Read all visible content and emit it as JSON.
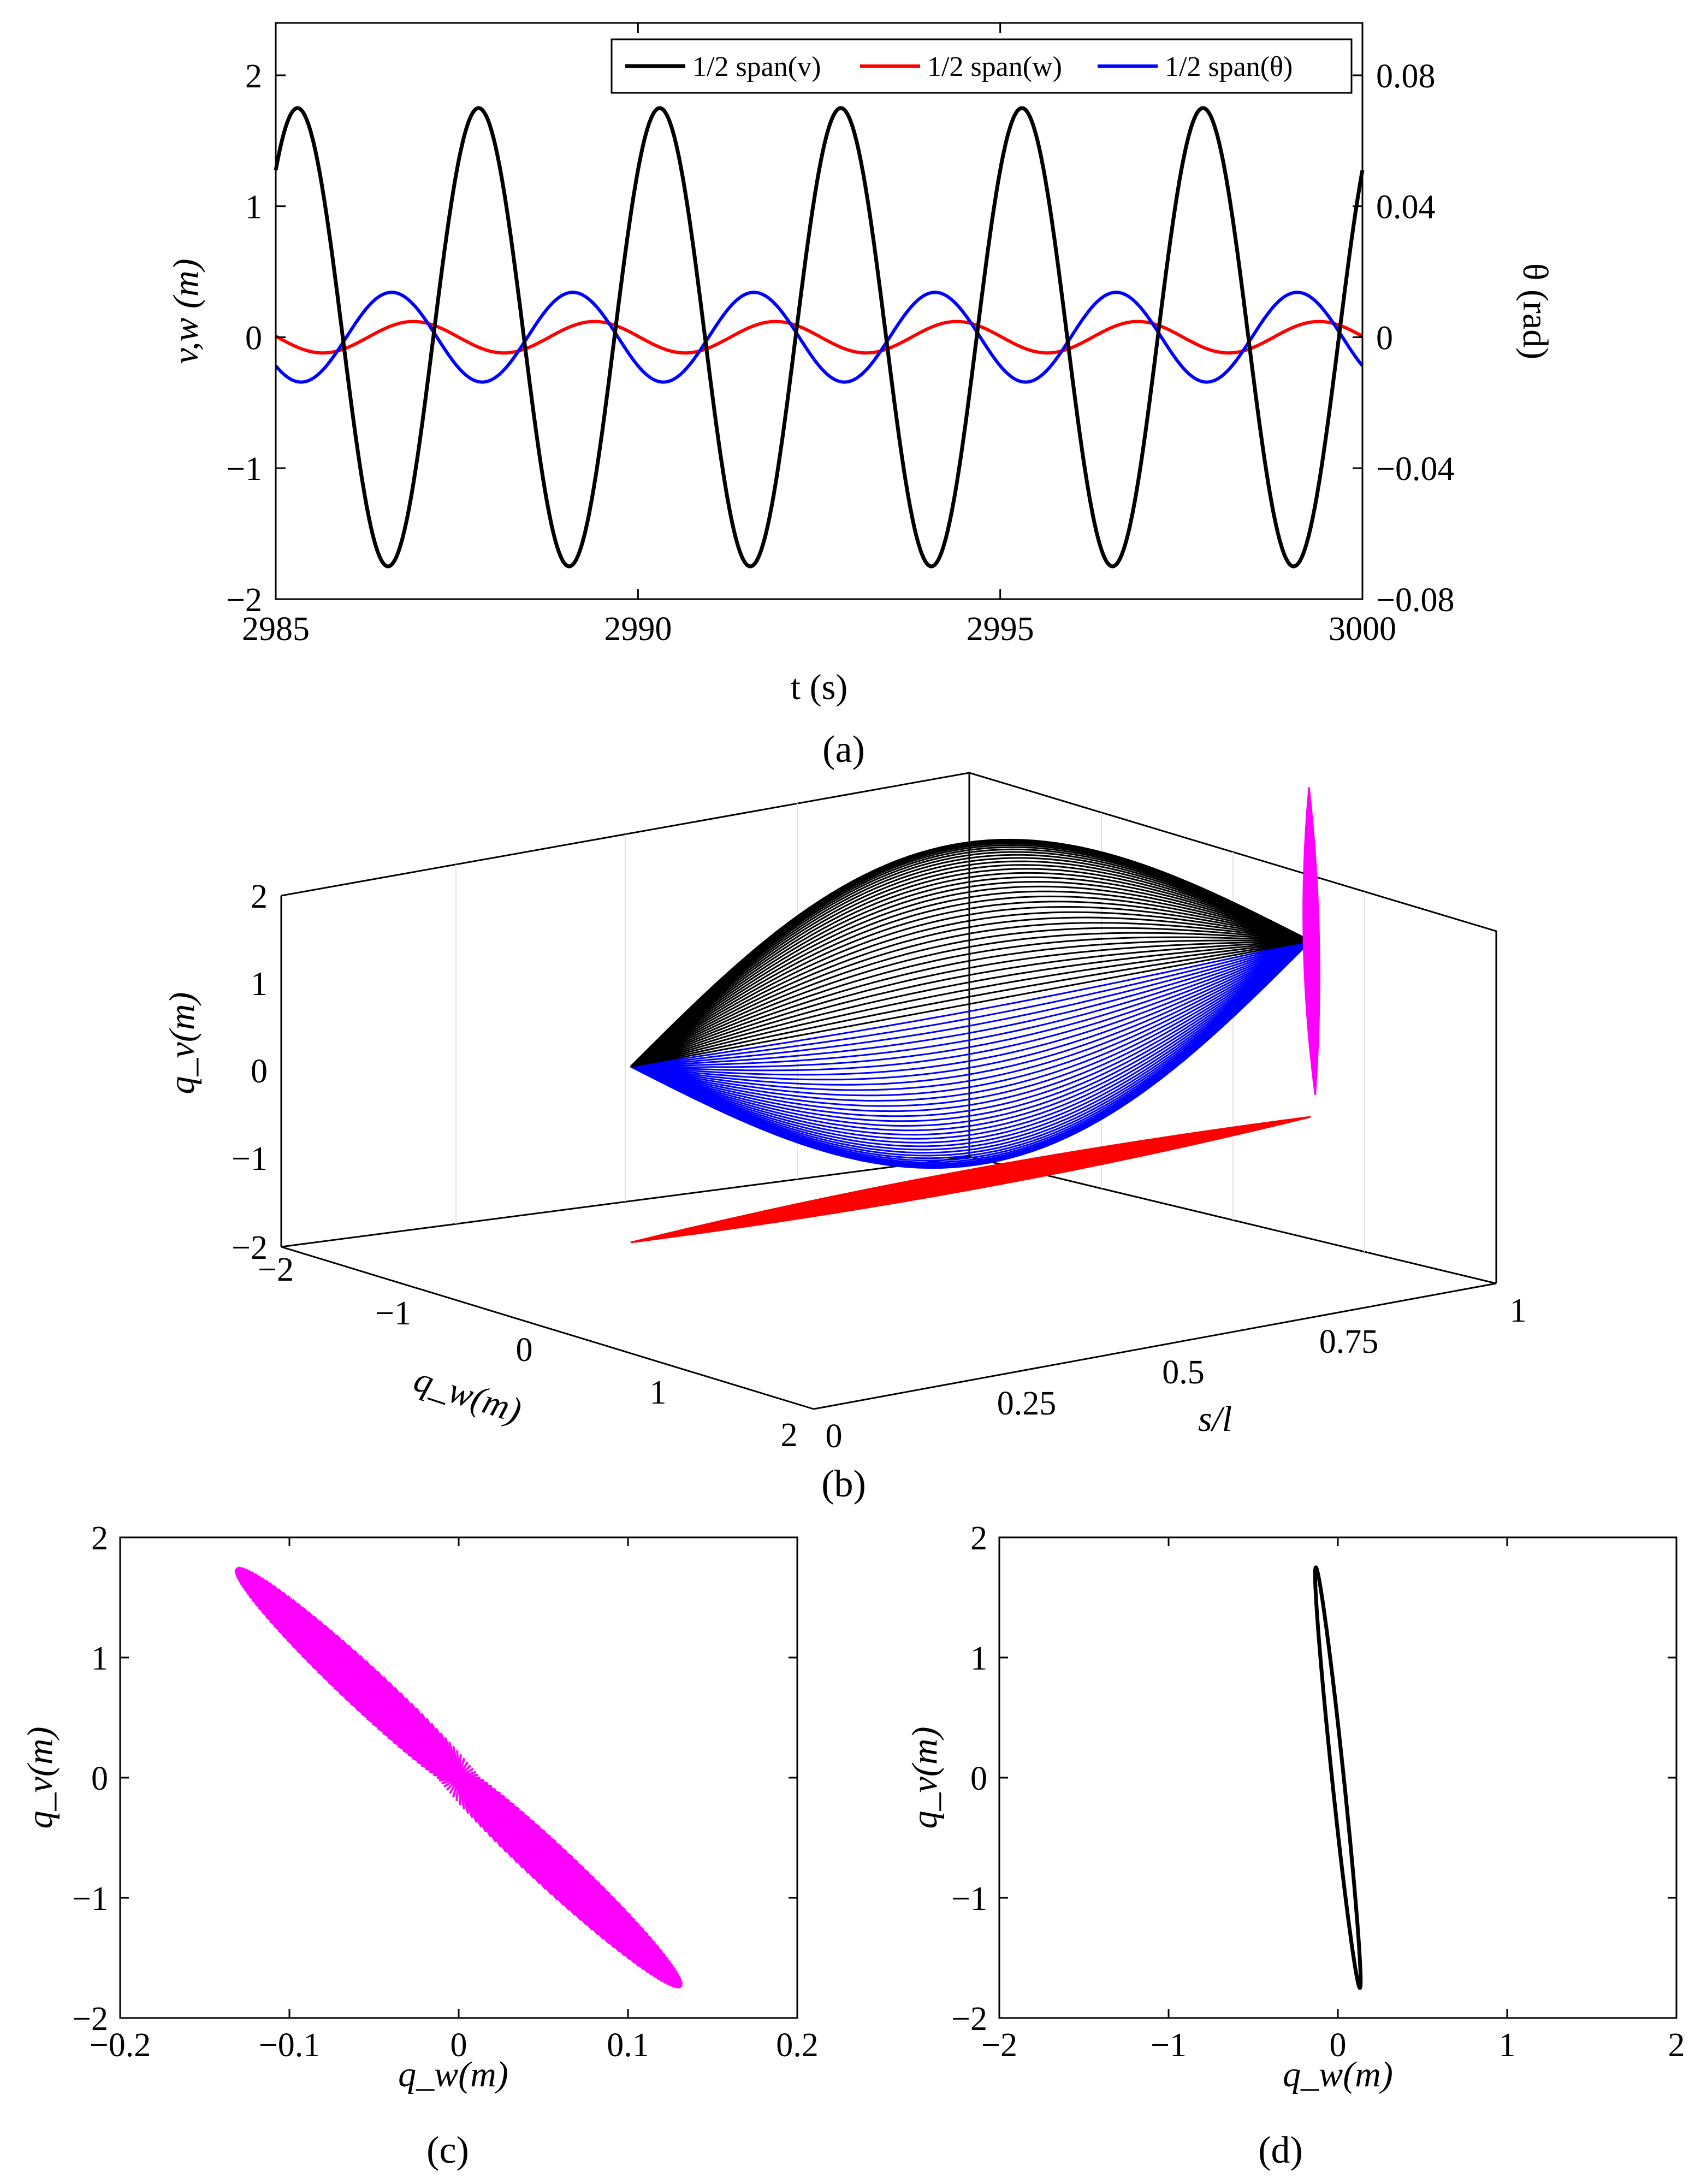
{
  "colors": {
    "v": "#000000",
    "w": "#ff0000",
    "theta": "#0000ff",
    "mode_blue": "#0000ff",
    "mode_black": "#000000",
    "magenta": "#ff00ff",
    "red": "#ff0000"
  },
  "panel_labels": [
    "(a)",
    "(b)",
    "(c)",
    "(d)"
  ],
  "chart_data": [
    {
      "id": "a",
      "type": "line",
      "xlabel": "t (s)",
      "ylabel": "v,w (m)",
      "y2label": "θ (rad)",
      "xlim": [
        2985,
        3000
      ],
      "ylim": [
        -2,
        2.4
      ],
      "y2lim": [
        -0.08,
        0.096
      ],
      "xticks": [
        "2985",
        "2990",
        "2995",
        "3000"
      ],
      "yticks": [
        "−2",
        "−1",
        "0",
        "1",
        "2"
      ],
      "y2ticks": [
        "−0.08",
        "−0.04",
        "0",
        "0.04",
        "0.08"
      ],
      "legend": [
        "1/2 span(v)",
        "1/2 span(w)",
        "1/2 span(θ)"
      ],
      "legend_location": "top-right",
      "series": [
        {
          "name": "1/2 span(v)",
          "amplitude": 1.75,
          "period": 2.5,
          "peak_time": 2987.8,
          "axis": "left"
        },
        {
          "name": "1/2 span(w)",
          "amplitude": 0.12,
          "period": 2.5,
          "peak_time": 2986.9,
          "axis": "left"
        },
        {
          "name": "1/2 span(θ)",
          "amplitude": 0.0137,
          "period": 2.5,
          "peak_time": 2986.6,
          "axis": "right"
        }
      ]
    },
    {
      "id": "b",
      "type": "line",
      "projection": "3d",
      "xlabel": "s/l",
      "ylabel": "q_w(m)",
      "zlabel": "q_v(m)",
      "xticks": [
        "0",
        "0.25",
        "0.5",
        "0.75",
        "1"
      ],
      "yticks": [
        "−2",
        "−1",
        "0",
        "1",
        "2"
      ],
      "zticks": [
        "−2",
        "−1",
        "0",
        "1",
        "2"
      ],
      "xlim": [
        0,
        1
      ],
      "ylim": [
        -2,
        2
      ],
      "zlim": [
        -2,
        2
      ],
      "series": [
        {
          "name": "mode shape (blue)",
          "max_amplitude": 1.75
        },
        {
          "name": "mode shape (black)",
          "max_amplitude": 1.75
        },
        {
          "name": "end-section orbit (magenta)",
          "qv_range": [
            -1.75,
            1.75
          ]
        },
        {
          "name": "q_w projection (red)",
          "qw_range": [
            -0.13,
            0.13
          ]
        }
      ]
    },
    {
      "id": "c",
      "type": "line",
      "xlabel": "q_w(m)",
      "ylabel": "q_v(m)",
      "xlim": [
        -0.2,
        0.2
      ],
      "ylim": [
        -2,
        2
      ],
      "xticks": [
        "−0.2",
        "−0.1",
        "0",
        "0.1",
        "0.2"
      ],
      "yticks": [
        "−2",
        "−1",
        "0",
        "1",
        "2"
      ],
      "series": [
        {
          "name": "orbits along span",
          "qw_max": 0.13,
          "qv_max": 1.75
        }
      ]
    },
    {
      "id": "d",
      "type": "line",
      "xlabel": "q_w(m)",
      "ylabel": "q_v(m)",
      "xlim": [
        -2,
        2
      ],
      "ylim": [
        -2,
        2
      ],
      "xticks": [
        "−2",
        "−1",
        "0",
        "1",
        "2"
      ],
      "yticks": [
        "−2",
        "−1",
        "0",
        "1",
        "2"
      ],
      "series": [
        {
          "name": "midspan orbit",
          "qw_max": 0.13,
          "qv_max": 1.75
        }
      ]
    }
  ]
}
